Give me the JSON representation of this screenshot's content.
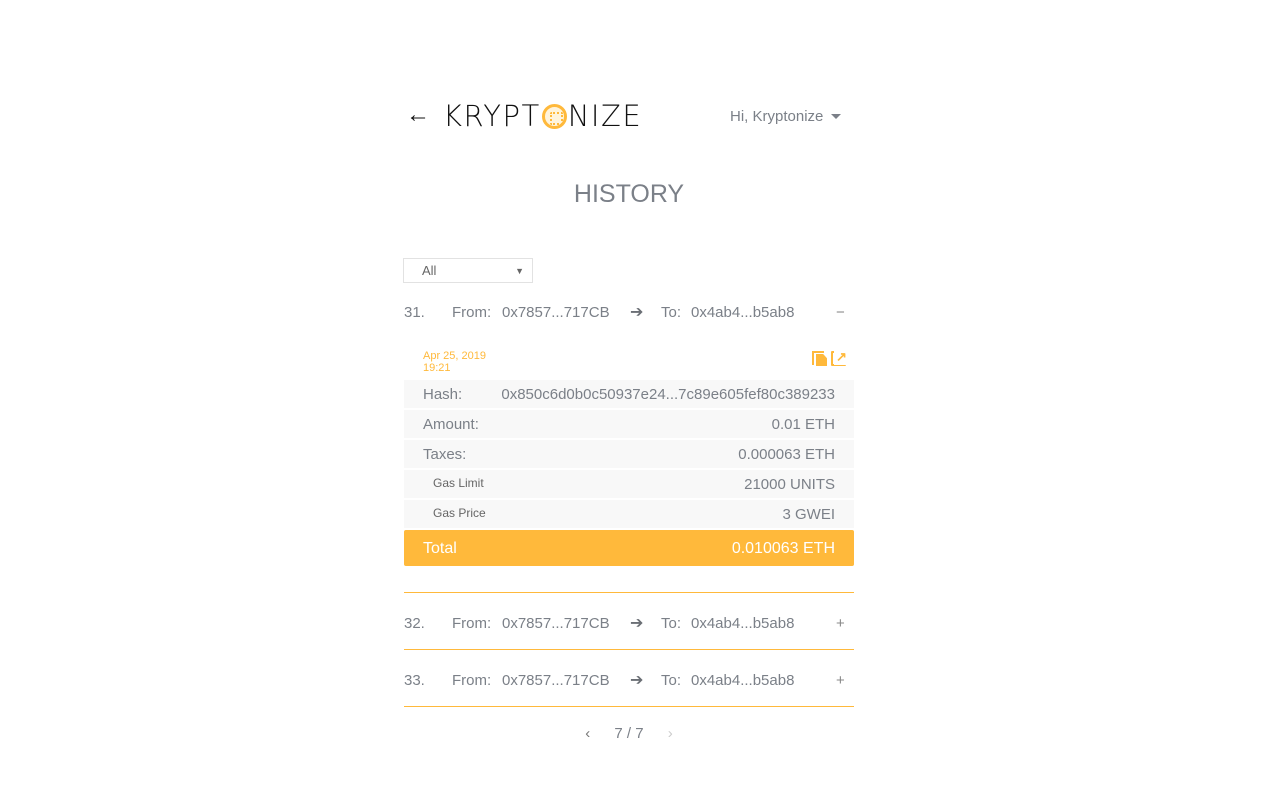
{
  "header": {
    "back_icon": "arrow-left-icon",
    "logo_text_left": "KRYPT",
    "logo_text_right": "NIZE",
    "greeting": "Hi, Kryptonize"
  },
  "page_title": "HISTORY",
  "filter": {
    "selected": "All"
  },
  "labels": {
    "from": "From:",
    "to": "To:"
  },
  "transactions": [
    {
      "index": "31.",
      "from": "0x7857...717CB",
      "to": "0x4ab4...b5ab8",
      "toggle": "−",
      "expanded": true
    },
    {
      "index": "32.",
      "from": "0x7857...717CB",
      "to": "0x4ab4...b5ab8",
      "toggle": "+",
      "expanded": false
    },
    {
      "index": "33.",
      "from": "0x7857...717CB",
      "to": "0x4ab4...b5ab8",
      "toggle": "+",
      "expanded": false
    }
  ],
  "details": {
    "date": "Apr 25, 2019",
    "time": "19:21",
    "hash_label": "Hash:",
    "hash": "0x850c6d0b0c50937e24...7c89e605fef80c389233",
    "amount_label": "Amount:",
    "amount": "0.01 ETH",
    "taxes_label": "Taxes:",
    "taxes": "0.000063 ETH",
    "gas_limit_label": "Gas Limit",
    "gas_limit": "21000 UNITS",
    "gas_price_label": "Gas Price",
    "gas_price": "3 GWEI",
    "total_label": "Total",
    "total": "0.010063 ETH"
  },
  "pagination": {
    "prev": "‹",
    "current": "7 / 7",
    "next": "›"
  },
  "colors": {
    "accent": "#ffb93b",
    "text": "#7b8088"
  }
}
